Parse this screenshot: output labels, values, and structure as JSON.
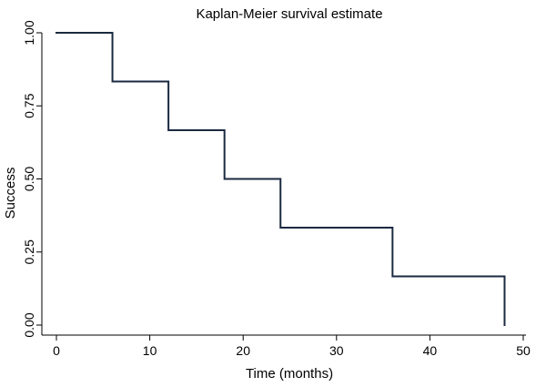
{
  "chart_data": {
    "type": "line",
    "step": true,
    "title": "Kaplan-Meier survival estimate",
    "xlabel": "Time (months)",
    "ylabel": "Success",
    "xlim": [
      0,
      50
    ],
    "ylim": [
      0,
      1
    ],
    "x_ticks": [
      0,
      10,
      20,
      30,
      40,
      50
    ],
    "x_tick_labels": [
      "0",
      "10",
      "20",
      "30",
      "40",
      "50"
    ],
    "y_ticks": [
      0,
      0.25,
      0.5,
      0.75,
      1
    ],
    "y_tick_labels": [
      "0.00",
      "0.25",
      "0.50",
      "0.75",
      "1.00"
    ],
    "grid": false,
    "legend": "none",
    "series": [
      {
        "color": "#1a2a40",
        "x": [
          0,
          6,
          12,
          18,
          24,
          36,
          48
        ],
        "y": [
          1.0,
          0.8333,
          0.6667,
          0.5,
          0.3333,
          0.1667,
          0.0
        ]
      }
    ]
  }
}
